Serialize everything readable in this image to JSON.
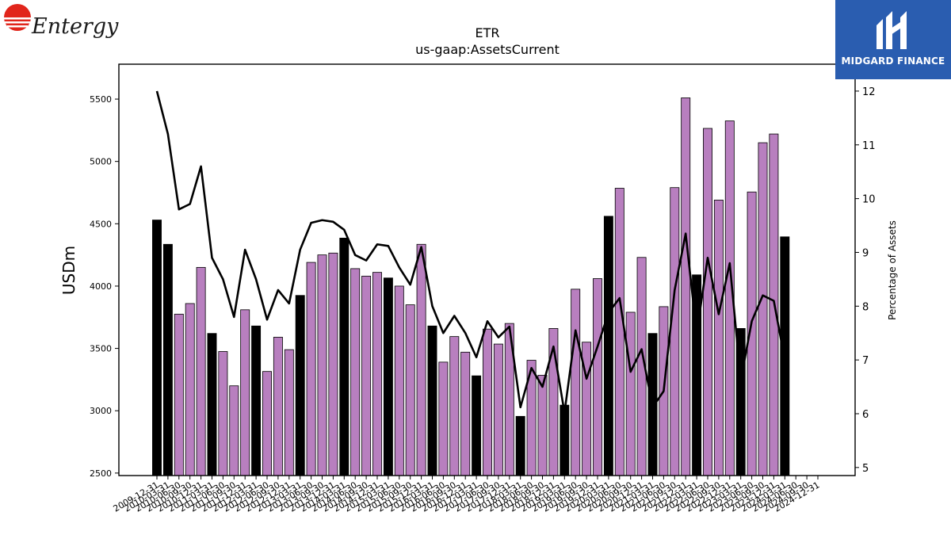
{
  "logos": {
    "left_brand": "Entergy",
    "right_brand": "MIDGARD FINANCE"
  },
  "colors": {
    "bar_purple": "#b87fbf",
    "bar_black": "#000000",
    "line": "#000000",
    "logo_red": "#e1251b",
    "logo_blue": "#2a5db0"
  },
  "chart_data": {
    "type": "bar",
    "title": "ETR",
    "subtitle": "us-gaap:AssetsCurrent",
    "ylabel": "USDm",
    "y2label": "Percentage of Assets",
    "ylim": [
      2480,
      5780
    ],
    "y2lim": [
      4.85,
      12.5
    ],
    "yticks": [
      2500,
      3000,
      3500,
      4000,
      4500,
      5000,
      5500
    ],
    "y2ticks": [
      5,
      6,
      7,
      8,
      9,
      10,
      11,
      12
    ],
    "x_tick_labels": [
      "2009-12-31",
      "2010-03-31",
      "2010-06-30",
      "2010-09-30",
      "2010-12-31",
      "2011-03-31",
      "2011-06-30",
      "2011-09-30",
      "2011-12-31",
      "2012-03-31",
      "2012-06-30",
      "2012-09-30",
      "2012-12-31",
      "2013-03-31",
      "2013-06-30",
      "2013-09-30",
      "2013-12-31",
      "2014-03-31",
      "2014-06-30",
      "2014-09-30",
      "2014-12-31",
      "2015-03-31",
      "2015-06-30",
      "2015-09-30",
      "2015-12-31",
      "2016-03-31",
      "2016-06-30",
      "2016-09-30",
      "2016-12-31",
      "2017-03-31",
      "2017-06-30",
      "2017-09-30",
      "2017-12-31",
      "2018-03-31",
      "2018-06-30",
      "2018-09-30",
      "2018-12-31",
      "2019-03-31",
      "2019-06-30",
      "2019-09-30",
      "2019-12-31",
      "2020-03-31",
      "2020-06-30",
      "2020-09-30",
      "2020-12-31",
      "2021-03-31",
      "2021-06-30",
      "2021-09-30",
      "2021-12-31",
      "2022-03-31",
      "2022-06-30",
      "2022-09-30",
      "2022-12-31",
      "2023-03-31",
      "2023-06-30",
      "2023-09-30",
      "2023-12-31",
      "2024-03-31",
      "2024-06-30",
      "2024-09-30",
      "2024-12-31"
    ],
    "tick_label_text": [
      "2009-12-31",
      "2010-03-31",
      "2010-06-30",
      "2010-09-30",
      "2010-12-31",
      "2011-03-31",
      "2011-06-30",
      "2011-09-30",
      "2011-12-31",
      "2012-03-31",
      "2012-06-30",
      "2012-09-30",
      "2012-12-31",
      "2013-03-31",
      "2013-06-30",
      "2013-09-30",
      "2013-12-31",
      "2014-03-31",
      "2014-06-30",
      "2014-09-30",
      "2014-12-31",
      "2015-03-31",
      "2015-06-30",
      "2015-09-30",
      "2015-12-31",
      "2016-03-31",
      "2016-06-30",
      "2016-09-30",
      "2016-12-31",
      "2017-03-31",
      "2017-06-30",
      "2017-09-30",
      "2017-12-31",
      "2018-03-31",
      "2018-06-30",
      "2018-09-30",
      "2018-12-31",
      "2019-03-31",
      "2019-06-30",
      "2019-09-30",
      "2019-12-31",
      "2020-03-31",
      "2020-06-30",
      "2020-09-30",
      "2020-12-31",
      "2021-03-31",
      "2021-06-30",
      "2021-09-30",
      "2021-12-31",
      "2022-03-31",
      "2022-06-30",
      "2022-09-30",
      "2022-12-31",
      "2023-03-31",
      "2023-06-30",
      "2023-09-30",
      "2023-12-31",
      "2024-03-31",
      "2024-06-30",
      "2024-09-30",
      "2024-12-31"
    ],
    "values": [
      4530,
      4335,
      3775,
      3860,
      4150,
      3620,
      3475,
      3200,
      3810,
      3680,
      3315,
      3590,
      3490,
      3925,
      4190,
      4250,
      4265,
      4385,
      4140,
      4080,
      4110,
      4065,
      4000,
      3850,
      4335,
      3680,
      3390,
      3595,
      3470,
      3280,
      3655,
      3535,
      3700,
      2955,
      3405,
      3285,
      3660,
      3045,
      3975,
      3550,
      4060,
      4560,
      4785,
      3790,
      4230,
      3620,
      3835,
      4790,
      5510,
      4090,
      5265,
      4690,
      5325,
      3660,
      4755,
      5150,
      5220,
      4395,
      null,
      null,
      null
    ],
    "highlight_year_end": [
      true,
      true,
      false,
      false,
      false,
      true,
      false,
      false,
      false,
      true,
      false,
      false,
      false,
      true,
      false,
      false,
      false,
      true,
      false,
      false,
      false,
      true,
      false,
      false,
      false,
      true,
      false,
      false,
      false,
      true,
      false,
      false,
      false,
      true,
      false,
      false,
      false,
      true,
      false,
      false,
      false,
      true,
      false,
      false,
      false,
      true,
      false,
      false,
      false,
      true,
      false,
      false,
      false,
      true,
      false,
      false,
      false,
      true,
      false,
      false,
      false
    ],
    "series": [
      {
        "values": [
          12.0,
          11.2,
          9.8,
          9.9,
          10.6,
          8.9,
          8.5,
          7.8,
          9.05,
          8.5,
          7.75,
          8.3,
          8.05,
          9.05,
          9.55,
          9.6,
          9.57,
          9.42,
          8.95,
          8.85,
          9.15,
          9.12,
          8.72,
          8.4,
          9.1,
          8.0,
          7.5,
          7.82,
          7.5,
          7.05,
          7.72,
          7.42,
          7.62,
          6.12,
          6.85,
          6.5,
          7.25,
          6.02,
          7.55,
          6.65,
          7.25,
          7.88,
          8.15,
          6.78,
          7.2,
          6.12,
          6.42,
          8.3,
          9.35,
          7.5,
          8.9,
          7.85,
          8.8,
          6.62,
          7.72,
          8.2,
          8.1,
          7.0,
          null,
          null,
          null
        ]
      }
    ]
  }
}
